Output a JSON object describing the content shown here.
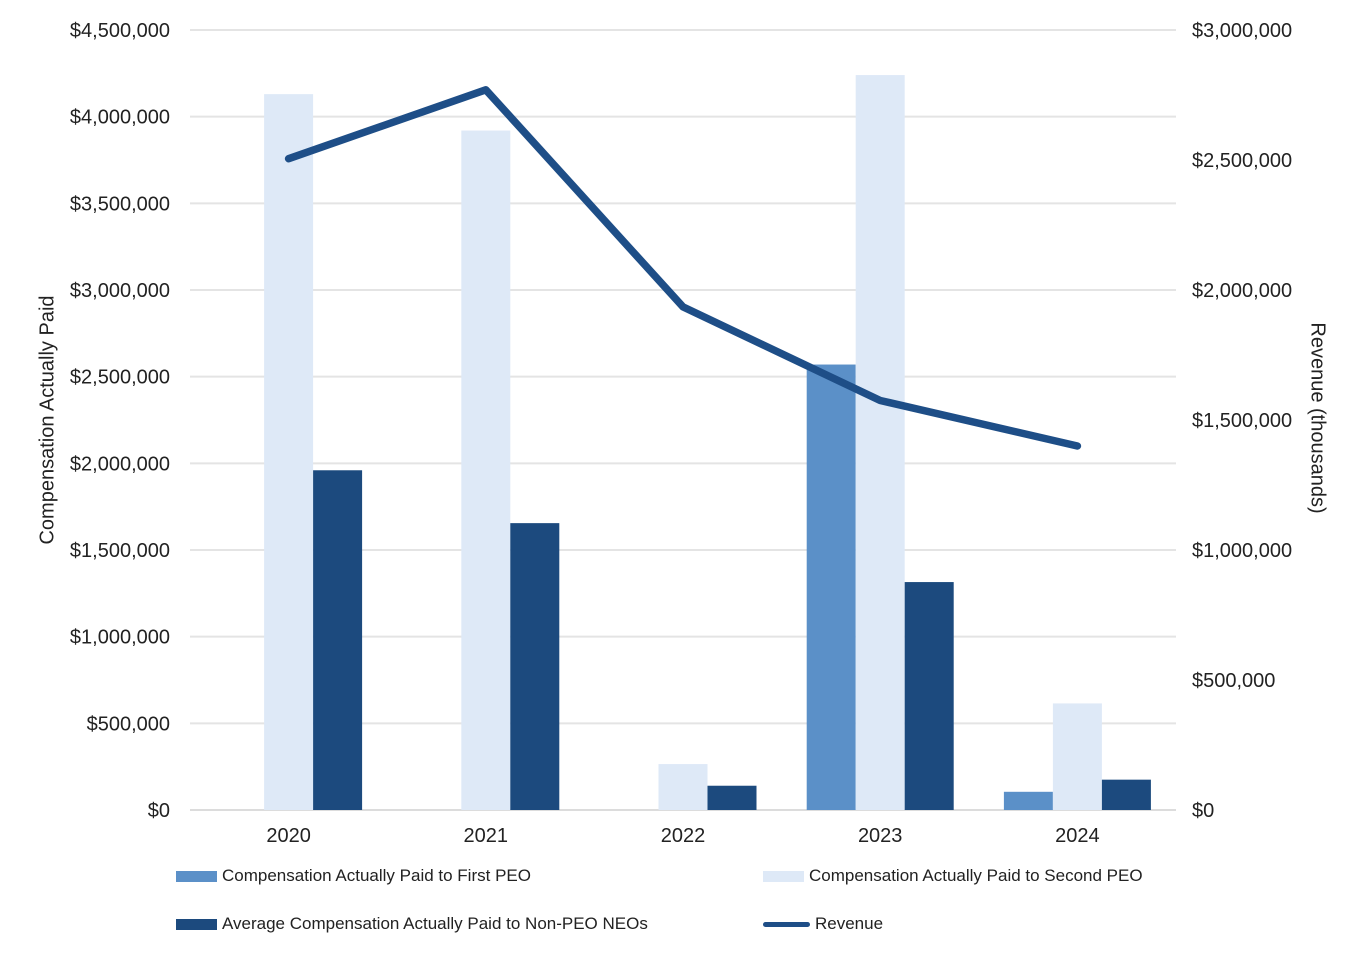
{
  "chart_data": {
    "type": "bar",
    "subtype": "combo-bar-line",
    "categories": [
      "2020",
      "2021",
      "2022",
      "2023",
      "2024"
    ],
    "series": [
      {
        "name": "Compensation Actually Paid to First PEO",
        "kind": "bar",
        "axis": "left",
        "color": "#5b90c8",
        "values": [
          0,
          0,
          0,
          2570000,
          105000
        ]
      },
      {
        "name": "Compensation Actually Paid to Second PEO",
        "kind": "bar",
        "axis": "left",
        "color": "#dee9f7",
        "values": [
          4130000,
          3920000,
          265000,
          4240000,
          615000
        ]
      },
      {
        "name": "Average Compensation Actually Paid to Non-PEO NEOs",
        "kind": "bar",
        "axis": "left",
        "color": "#1c4a7e",
        "values": [
          1960000,
          1655000,
          140000,
          1315000,
          175000
        ]
      },
      {
        "name": "Revenue",
        "kind": "line",
        "axis": "right",
        "color": "#1e4e87",
        "values": [
          2505000,
          2770000,
          1935000,
          1575000,
          1400000
        ]
      }
    ],
    "left_axis": {
      "title": "Compensation Actually Paid",
      "min": 0,
      "max": 4500000,
      "tick_labels": [
        "$4,500,000",
        "$4,000,000",
        "$3,500,000",
        "$3,000,000",
        "$2,500,000",
        "$2,000,000",
        "$1,500,000",
        "$1,000,000",
        "$500,000",
        "$0"
      ]
    },
    "right_axis": {
      "title": "Revenue (thousands)",
      "min": 0,
      "max": 3000000,
      "tick_labels": [
        "$3,000,000",
        "$2,500,000",
        "$2,000,000",
        "$1,500,000",
        "$1,000,000",
        "$500,000",
        "$0"
      ]
    },
    "grid": true,
    "legend_position": "bottom"
  },
  "style": {
    "grid_color": "#e4e4e4",
    "baseline_color": "#dcdcdc",
    "text_color": "#222222",
    "background": "#ffffff"
  }
}
